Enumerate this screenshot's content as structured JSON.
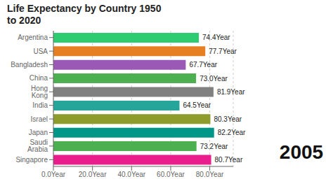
{
  "chart_data": {
    "type": "bar",
    "orientation": "horizontal",
    "title": "Life Expectancy by Country 1950\nto 2020",
    "annotations": [
      "2005"
    ],
    "categories": [
      "Argentina",
      "USA",
      "Bangladesh",
      "China",
      "Hong Kong",
      "India",
      "Israel",
      "Japan",
      "Saudi Arabia",
      "Singapore"
    ],
    "values": [
      74.4,
      77.7,
      67.7,
      73.0,
      81.9,
      64.5,
      80.3,
      82.2,
      73.2,
      80.7
    ],
    "value_labels": [
      "74.4Year",
      "77.7Year",
      "67.7Year",
      "73.0Year",
      "81.9Year",
      "64.5Year",
      "80.3Year",
      "82.2Year",
      "73.2Year",
      "80.7Year"
    ],
    "colors": [
      "#2ecc71",
      "#e67e22",
      "#9b59b6",
      "#4caf50",
      "#808080",
      "#26a69a",
      "#8d9c2a",
      "#009688",
      "#4caf50",
      "#e91e8c"
    ],
    "xlim": [
      0,
      92
    ],
    "xticks": [
      {
        "value": 0,
        "label": "0.0Year"
      },
      {
        "value": 20,
        "label": "20.0Year"
      },
      {
        "value": 40,
        "label": "40.0Year"
      },
      {
        "value": 60,
        "label": "60.0Year"
      },
      {
        "value": 80,
        "label": "80.0Year"
      }
    ],
    "grid": true,
    "data_labels": true
  }
}
